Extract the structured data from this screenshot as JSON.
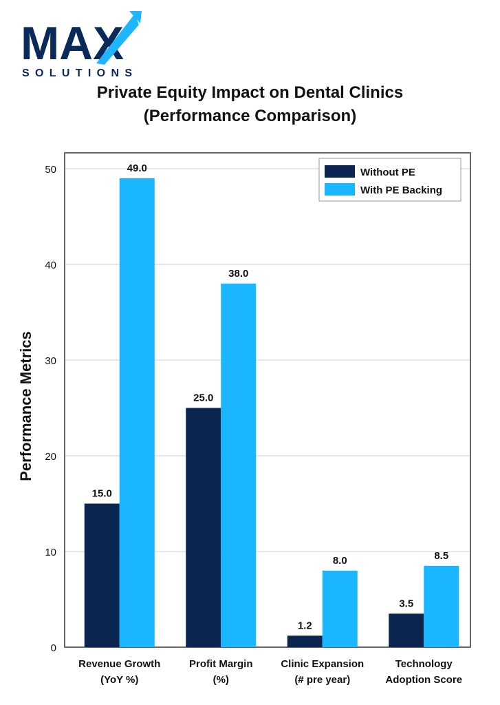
{
  "logo": {
    "wordmark": "MAX",
    "tagline": "SOLUTIONS",
    "colors": {
      "navy": "#0b2a5c",
      "accent": "#1fb6ff"
    }
  },
  "chart_data": {
    "type": "bar",
    "title": "Private Equity Impact on Dental Clinics",
    "subtitle": "(Performance Comparison)",
    "xlabel": "",
    "ylabel": "Performance Metrics",
    "categories": [
      [
        "Revenue Growth",
        "(YoY %)"
      ],
      [
        "Profit Margin",
        "(%)"
      ],
      [
        "Clinic Expansion",
        "(# pre year)"
      ],
      [
        "Technology",
        "Adoption Score"
      ]
    ],
    "series": [
      {
        "name": "Without PE",
        "color": "#0a2550",
        "values": [
          15.0,
          25.0,
          1.2,
          3.5
        ]
      },
      {
        "name": "With PE Backing",
        "color": "#1ab6ff",
        "values": [
          49.0,
          38.0,
          8.0,
          8.5
        ]
      }
    ],
    "ylim": [
      0,
      52
    ],
    "yticks": [
      "0",
      "10",
      "20",
      "30",
      "40",
      "50"
    ],
    "grid": true,
    "legend_position": "top-right"
  }
}
